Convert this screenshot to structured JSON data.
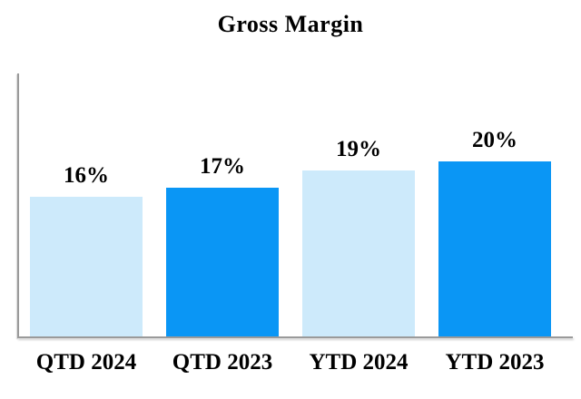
{
  "chart_data": {
    "type": "bar",
    "title": "Gross Margin",
    "categories": [
      "QTD 2024",
      "QTD 2023",
      "YTD 2024",
      "YTD 2023"
    ],
    "values": [
      16,
      17,
      19,
      20
    ],
    "value_labels": [
      "16%",
      "17%",
      "19%",
      "20%"
    ],
    "unit": "%",
    "bar_colors": [
      "#CDEAFB",
      "#0A96F5",
      "#CDEAFB",
      "#0A96F5"
    ],
    "light_bar_color": "#CDEAFB",
    "dark_bar_color": "#0A96F5",
    "axis_color": "#9A9A9A",
    "ylim": [
      0,
      30
    ],
    "xlabel": "",
    "ylabel": "",
    "grid": false,
    "legend": false,
    "data_labels_position": "above-bars"
  }
}
